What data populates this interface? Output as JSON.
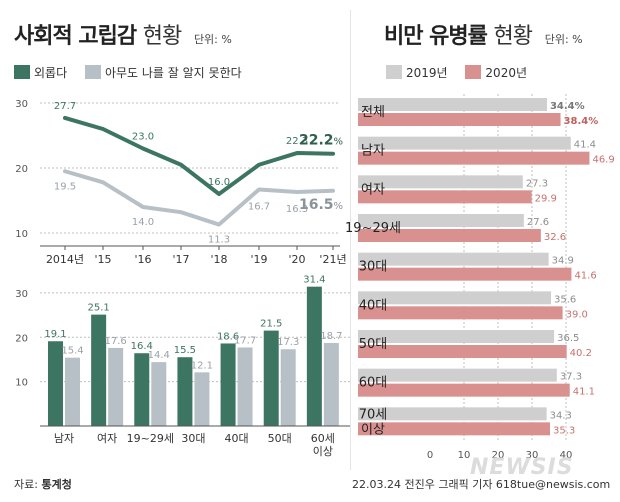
{
  "left": {
    "title_main": "사회적 고립감",
    "title_sub": "현황",
    "unit": "단위: %",
    "legend": [
      {
        "label": "외롭다",
        "color": "#3d7563"
      },
      {
        "label": "아무도 나를 잘 알지 못한다",
        "color": "#b8c0c7"
      }
    ]
  },
  "right": {
    "title_main": "비만 유병률",
    "title_sub": "현황",
    "unit": "단위: %",
    "legend": [
      {
        "label": "2019년",
        "color": "#cfcfcf"
      },
      {
        "label": "2020년",
        "color": "#d9918f"
      }
    ]
  },
  "colors": {
    "green": "#3d7563",
    "gray": "#b8c0c7",
    "gray19": "#cfcfcf",
    "pink20": "#d9918f",
    "grid": "#bfbfbf"
  },
  "footer": {
    "source_label": "자료:",
    "source_name": "통계청",
    "credit": "22.03.24 전진우 그래픽 기자 618tue@newsis.com"
  },
  "watermark": "NEWSIS",
  "chart_data": [
    {
      "type": "line",
      "categories": [
        "2014년",
        "'15",
        "'16",
        "'17",
        "'18",
        "'19",
        "'20",
        "'21년"
      ],
      "series": [
        {
          "name": "외롭다",
          "values": [
            27.7,
            26.0,
            23.0,
            20.5,
            16.0,
            20.5,
            22.3,
            22.2
          ]
        },
        {
          "name": "아무도 나를 잘 알지 못한다",
          "values": [
            19.5,
            17.8,
            14.0,
            13.2,
            11.3,
            16.7,
            16.3,
            16.5
          ]
        }
      ],
      "labels": {
        "series0": [
          "27.7",
          "",
          "23.0",
          "",
          "16.0",
          "",
          "22.3",
          "22.2"
        ],
        "series1": [
          "19.5",
          "",
          "14.0",
          "",
          "11.3",
          "16.7",
          "16.3",
          "16.5"
        ]
      },
      "last_suffix": "%",
      "yticks": [
        10,
        20,
        30
      ],
      "ylim": [
        8,
        32
      ],
      "grid": true
    },
    {
      "type": "bar",
      "categories": [
        "남자",
        "여자",
        "19~29세",
        "30대",
        "40대",
        "50대",
        "60세 이상"
      ],
      "series": [
        {
          "name": "외롭다",
          "values": [
            19.1,
            25.1,
            16.4,
            15.5,
            18.6,
            21.5,
            31.4
          ]
        },
        {
          "name": "아무도 나를 잘 알지 못한다",
          "values": [
            15.4,
            17.6,
            14.4,
            12.1,
            17.7,
            17.3,
            18.7
          ]
        }
      ],
      "yticks": [
        10,
        20,
        30
      ],
      "ylim": [
        0,
        32
      ],
      "grid": true
    },
    {
      "type": "bar",
      "orientation": "horizontal",
      "categories": [
        "전체",
        "남자",
        "여자",
        "19~29세",
        "30대",
        "40대",
        "50대",
        "60대",
        "70세 이상"
      ],
      "series": [
        {
          "name": "2019년",
          "values": [
            34.4,
            41.4,
            27.3,
            27.6,
            34.9,
            35.6,
            36.5,
            37.3,
            34.3
          ]
        },
        {
          "name": "2020년",
          "values": [
            38.4,
            46.9,
            29.9,
            32.6,
            41.6,
            39.0,
            40.2,
            41.1,
            35.3
          ]
        }
      ],
      "first_suffix": "%",
      "xticks": [
        0,
        10,
        20,
        30,
        40
      ],
      "xlim": [
        0,
        50
      ],
      "grid": true
    }
  ]
}
